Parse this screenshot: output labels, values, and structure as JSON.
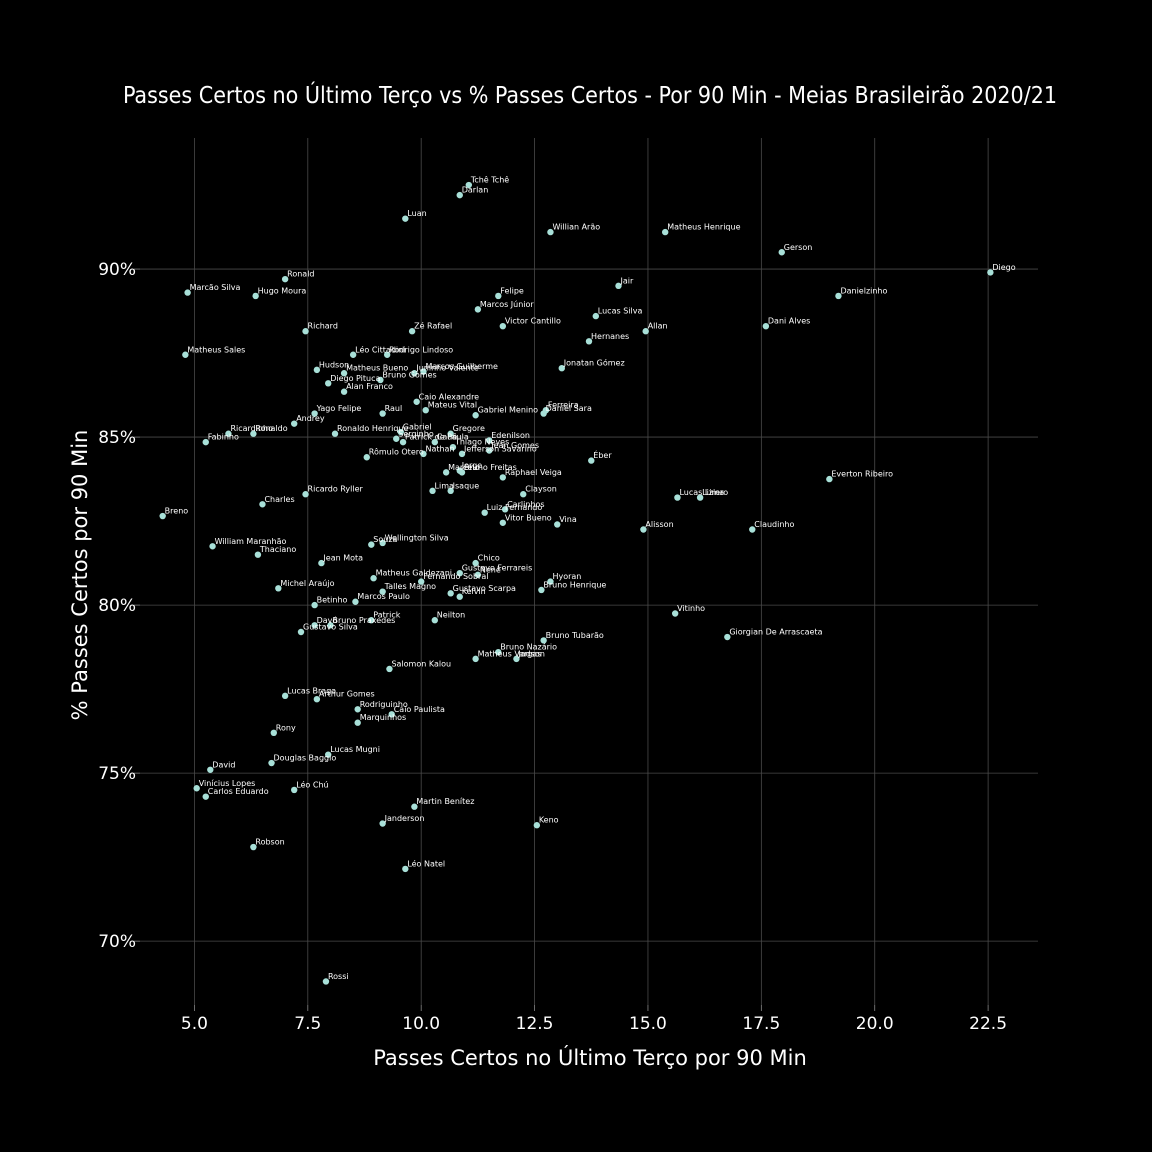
{
  "chart_data": {
    "type": "scatter",
    "title": "Passes Certos no Último Terço vs % Passes Certos - Por 90 Min - Meias Brasileirão 2020/21",
    "xlabel": "Passes Certos no Último Terço por 90 Min",
    "ylabel": "% Passes Certos por 90 Min",
    "xlim": [
      3.8,
      23.6
    ],
    "ylim": [
      68.1,
      93.9
    ],
    "xticks": [
      5.0,
      7.5,
      10.0,
      12.5,
      15.0,
      17.5,
      20.0,
      22.5
    ],
    "xtick_labels": [
      "5.0",
      "7.5",
      "10.0",
      "12.5",
      "15.0",
      "17.5",
      "20.0",
      "22.5"
    ],
    "yticks": [
      70,
      75,
      80,
      85,
      90
    ],
    "ytick_labels": [
      "70%",
      "75%",
      "80%",
      "85%",
      "90%"
    ],
    "grid": true,
    "point_color": "#a8e0d8",
    "points": [
      {
        "label": "Tchê Tchê",
        "x": 11.05,
        "y": 92.5
      },
      {
        "label": "Darlan",
        "x": 10.85,
        "y": 92.2
      },
      {
        "label": "Luan",
        "x": 9.65,
        "y": 91.5
      },
      {
        "label": "Willian Arão",
        "x": 12.85,
        "y": 91.1
      },
      {
        "label": "Matheus Henrique",
        "x": 15.38,
        "y": 91.1
      },
      {
        "label": "Gerson",
        "x": 17.95,
        "y": 90.5
      },
      {
        "label": "Diego",
        "x": 22.55,
        "y": 89.9
      },
      {
        "label": "Ronald",
        "x": 7.0,
        "y": 89.7
      },
      {
        "label": "Marcão Silva",
        "x": 4.85,
        "y": 89.3
      },
      {
        "label": "Hugo Moura",
        "x": 6.35,
        "y": 89.2
      },
      {
        "label": "Jair",
        "x": 14.35,
        "y": 89.5
      },
      {
        "label": "Danielzinho",
        "x": 19.2,
        "y": 89.2
      },
      {
        "label": "Felipe",
        "x": 11.7,
        "y": 89.2
      },
      {
        "label": "Marcos Júnior",
        "x": 11.25,
        "y": 88.8
      },
      {
        "label": "Lucas Silva",
        "x": 13.85,
        "y": 88.6
      },
      {
        "label": "Victor Cantillo",
        "x": 11.8,
        "y": 88.3
      },
      {
        "label": "Dani Alves",
        "x": 17.6,
        "y": 88.3
      },
      {
        "label": "Allan",
        "x": 14.95,
        "y": 88.15
      },
      {
        "label": "Richard",
        "x": 7.45,
        "y": 88.15
      },
      {
        "label": "Zé Rafael",
        "x": 9.8,
        "y": 88.15
      },
      {
        "label": "Hernanes",
        "x": 13.7,
        "y": 87.85
      },
      {
        "label": "Matheus Sales",
        "x": 4.8,
        "y": 87.45
      },
      {
        "label": "Léo Cittadini",
        "x": 8.5,
        "y": 87.45
      },
      {
        "label": "Rodrigo Lindoso",
        "x": 9.25,
        "y": 87.45
      },
      {
        "label": "Jonatan Gómez",
        "x": 13.1,
        "y": 87.05
      },
      {
        "label": "Hudson",
        "x": 7.7,
        "y": 87.0
      },
      {
        "label": "Marcos Guilherme",
        "x": 10.05,
        "y": 86.95
      },
      {
        "label": "Matheus Bueno",
        "x": 8.3,
        "y": 86.9
      },
      {
        "label": "Juninho Valente",
        "x": 9.85,
        "y": 86.9
      },
      {
        "label": "Bruno Gomes",
        "x": 9.1,
        "y": 86.7
      },
      {
        "label": "Diego Pituca",
        "x": 7.95,
        "y": 86.6
      },
      {
        "label": "Alan Franco",
        "x": 8.3,
        "y": 86.35
      },
      {
        "label": "Caio Alexandre",
        "x": 9.9,
        "y": 86.05
      },
      {
        "label": "Mateus Vital",
        "x": 10.1,
        "y": 85.8
      },
      {
        "label": "Yago Felipe",
        "x": 7.65,
        "y": 85.7
      },
      {
        "label": "Raul",
        "x": 9.15,
        "y": 85.7
      },
      {
        "label": "Gabriel Menino",
        "x": 11.2,
        "y": 85.65
      },
      {
        "label": "Ferreira",
        "x": 12.75,
        "y": 85.8
      },
      {
        "label": "Daniel Sara",
        "x": 12.7,
        "y": 85.7
      },
      {
        "label": "Andrey",
        "x": 7.2,
        "y": 85.4
      },
      {
        "label": "Ricardinho",
        "x": 5.75,
        "y": 85.1
      },
      {
        "label": "Ronaldo",
        "x": 6.3,
        "y": 85.1
      },
      {
        "label": "Ronaldo Henrique",
        "x": 8.1,
        "y": 85.1
      },
      {
        "label": "Gabriel",
        "x": 9.55,
        "y": 85.15
      },
      {
        "label": "Serginho",
        "x": 9.45,
        "y": 84.95
      },
      {
        "label": "Gregore",
        "x": 10.65,
        "y": 85.1
      },
      {
        "label": "Fabinho",
        "x": 5.25,
        "y": 84.85
      },
      {
        "label": "Patrick de Paula",
        "x": 9.6,
        "y": 84.85
      },
      {
        "label": "Cauê",
        "x": 10.3,
        "y": 84.85
      },
      {
        "label": "Edenilson",
        "x": 11.5,
        "y": 84.9
      },
      {
        "label": "Thiago Neves",
        "x": 10.7,
        "y": 84.7
      },
      {
        "label": "Jean Gomes",
        "x": 11.5,
        "y": 84.6
      },
      {
        "label": "Nathan",
        "x": 10.05,
        "y": 84.5
      },
      {
        "label": "Jefferson Savarino",
        "x": 10.9,
        "y": 84.5
      },
      {
        "label": "Rômulo Otero",
        "x": 8.8,
        "y": 84.4
      },
      {
        "label": "Éber",
        "x": 13.75,
        "y": 84.3
      },
      {
        "label": "Marcelo",
        "x": 10.55,
        "y": 83.95
      },
      {
        "label": "Jorge",
        "x": 10.85,
        "y": 84.0
      },
      {
        "label": "Bruno Freitas",
        "x": 10.9,
        "y": 83.95
      },
      {
        "label": "Raphael Veiga",
        "x": 11.8,
        "y": 83.8
      },
      {
        "label": "Everton Ribeiro",
        "x": 19.0,
        "y": 83.75
      },
      {
        "label": "Lima",
        "x": 10.25,
        "y": 83.4
      },
      {
        "label": "Isaque",
        "x": 10.65,
        "y": 83.4
      },
      {
        "label": "Clayson",
        "x": 12.25,
        "y": 83.3
      },
      {
        "label": "Ricardo Ryller",
        "x": 7.45,
        "y": 83.3
      },
      {
        "label": "Lucas Lima",
        "x": 15.65,
        "y": 83.2
      },
      {
        "label": "Liziero",
        "x": 16.15,
        "y": 83.2
      },
      {
        "label": "Charles",
        "x": 6.5,
        "y": 83.0
      },
      {
        "label": "Carlinhos",
        "x": 11.85,
        "y": 82.85
      },
      {
        "label": "Luiz Fernando",
        "x": 11.4,
        "y": 82.75
      },
      {
        "label": "Breno",
        "x": 4.3,
        "y": 82.65
      },
      {
        "label": "Vitor Bueno",
        "x": 11.8,
        "y": 82.45
      },
      {
        "label": "Vina",
        "x": 13.0,
        "y": 82.4
      },
      {
        "label": "Alisson",
        "x": 14.9,
        "y": 82.25
      },
      {
        "label": "Claudinho",
        "x": 17.3,
        "y": 82.25
      },
      {
        "label": "Wellington Silva",
        "x": 9.15,
        "y": 81.85
      },
      {
        "label": "Souza",
        "x": 8.9,
        "y": 81.8
      },
      {
        "label": "William Maranhão",
        "x": 5.4,
        "y": 81.75
      },
      {
        "label": "Thaciano",
        "x": 6.4,
        "y": 81.5
      },
      {
        "label": "Jean Mota",
        "x": 7.8,
        "y": 81.25
      },
      {
        "label": "Chico",
        "x": 11.2,
        "y": 81.25
      },
      {
        "label": "Gustavo Ferrareis",
        "x": 10.85,
        "y": 80.95
      },
      {
        "label": "Nenê",
        "x": 11.25,
        "y": 80.9
      },
      {
        "label": "Matheus Galdezani",
        "x": 8.95,
        "y": 80.8
      },
      {
        "label": "Fernando Sobral",
        "x": 10.0,
        "y": 80.7
      },
      {
        "label": "Hyoran",
        "x": 12.85,
        "y": 80.7
      },
      {
        "label": "Michel Araújo",
        "x": 6.85,
        "y": 80.5
      },
      {
        "label": "Bruno Henrique",
        "x": 12.65,
        "y": 80.45
      },
      {
        "label": "Talles Magno",
        "x": 9.15,
        "y": 80.4
      },
      {
        "label": "Gustavo Scarpa",
        "x": 10.65,
        "y": 80.35
      },
      {
        "label": "Kelvin",
        "x": 10.85,
        "y": 80.25
      },
      {
        "label": "Marcos Paulo",
        "x": 8.55,
        "y": 80.1
      },
      {
        "label": "Betinho",
        "x": 7.65,
        "y": 80.0
      },
      {
        "label": "Vitinho",
        "x": 15.6,
        "y": 79.75
      },
      {
        "label": "Patrick",
        "x": 8.9,
        "y": 79.55
      },
      {
        "label": "Neilton",
        "x": 10.3,
        "y": 79.55
      },
      {
        "label": "Davó",
        "x": 7.65,
        "y": 79.4
      },
      {
        "label": "Bruno Praxedes",
        "x": 8.0,
        "y": 79.4
      },
      {
        "label": "Gustavo Silva",
        "x": 7.35,
        "y": 79.2
      },
      {
        "label": "Giorgian De Arrascaeta",
        "x": 16.75,
        "y": 79.05
      },
      {
        "label": "Bruno Tubarão",
        "x": 12.7,
        "y": 78.95
      },
      {
        "label": "Bruno Nazário",
        "x": 11.7,
        "y": 78.6
      },
      {
        "label": "Matheus Vargas",
        "x": 11.2,
        "y": 78.4
      },
      {
        "label": "Jadson",
        "x": 12.1,
        "y": 78.4
      },
      {
        "label": "Salomon Kalou",
        "x": 9.3,
        "y": 78.1
      },
      {
        "label": "Lucas Braga",
        "x": 7.0,
        "y": 77.3
      },
      {
        "label": "Arthur Gomes",
        "x": 7.7,
        "y": 77.2
      },
      {
        "label": "Rodriguinho",
        "x": 8.6,
        "y": 76.9
      },
      {
        "label": "Caio Paulista",
        "x": 9.35,
        "y": 76.75
      },
      {
        "label": "Marquinhos",
        "x": 8.6,
        "y": 76.5
      },
      {
        "label": "Rony",
        "x": 6.75,
        "y": 76.2
      },
      {
        "label": "Lucas Mugni",
        "x": 7.95,
        "y": 75.55
      },
      {
        "label": "Douglas Baggio",
        "x": 6.7,
        "y": 75.3
      },
      {
        "label": "David",
        "x": 5.35,
        "y": 75.1
      },
      {
        "label": "Vinícius Lopes",
        "x": 5.05,
        "y": 74.55
      },
      {
        "label": "Léo Chú",
        "x": 7.2,
        "y": 74.5
      },
      {
        "label": "Carlos Eduardo",
        "x": 5.25,
        "y": 74.3
      },
      {
        "label": "Martin Benítez",
        "x": 9.85,
        "y": 74.0
      },
      {
        "label": "Janderson",
        "x": 9.15,
        "y": 73.5
      },
      {
        "label": "Keno",
        "x": 12.55,
        "y": 73.45
      },
      {
        "label": "Robson",
        "x": 6.3,
        "y": 72.8
      },
      {
        "label": "Léo Natel",
        "x": 9.65,
        "y": 72.15
      },
      {
        "label": "Rossi",
        "x": 7.9,
        "y": 68.8
      }
    ]
  }
}
